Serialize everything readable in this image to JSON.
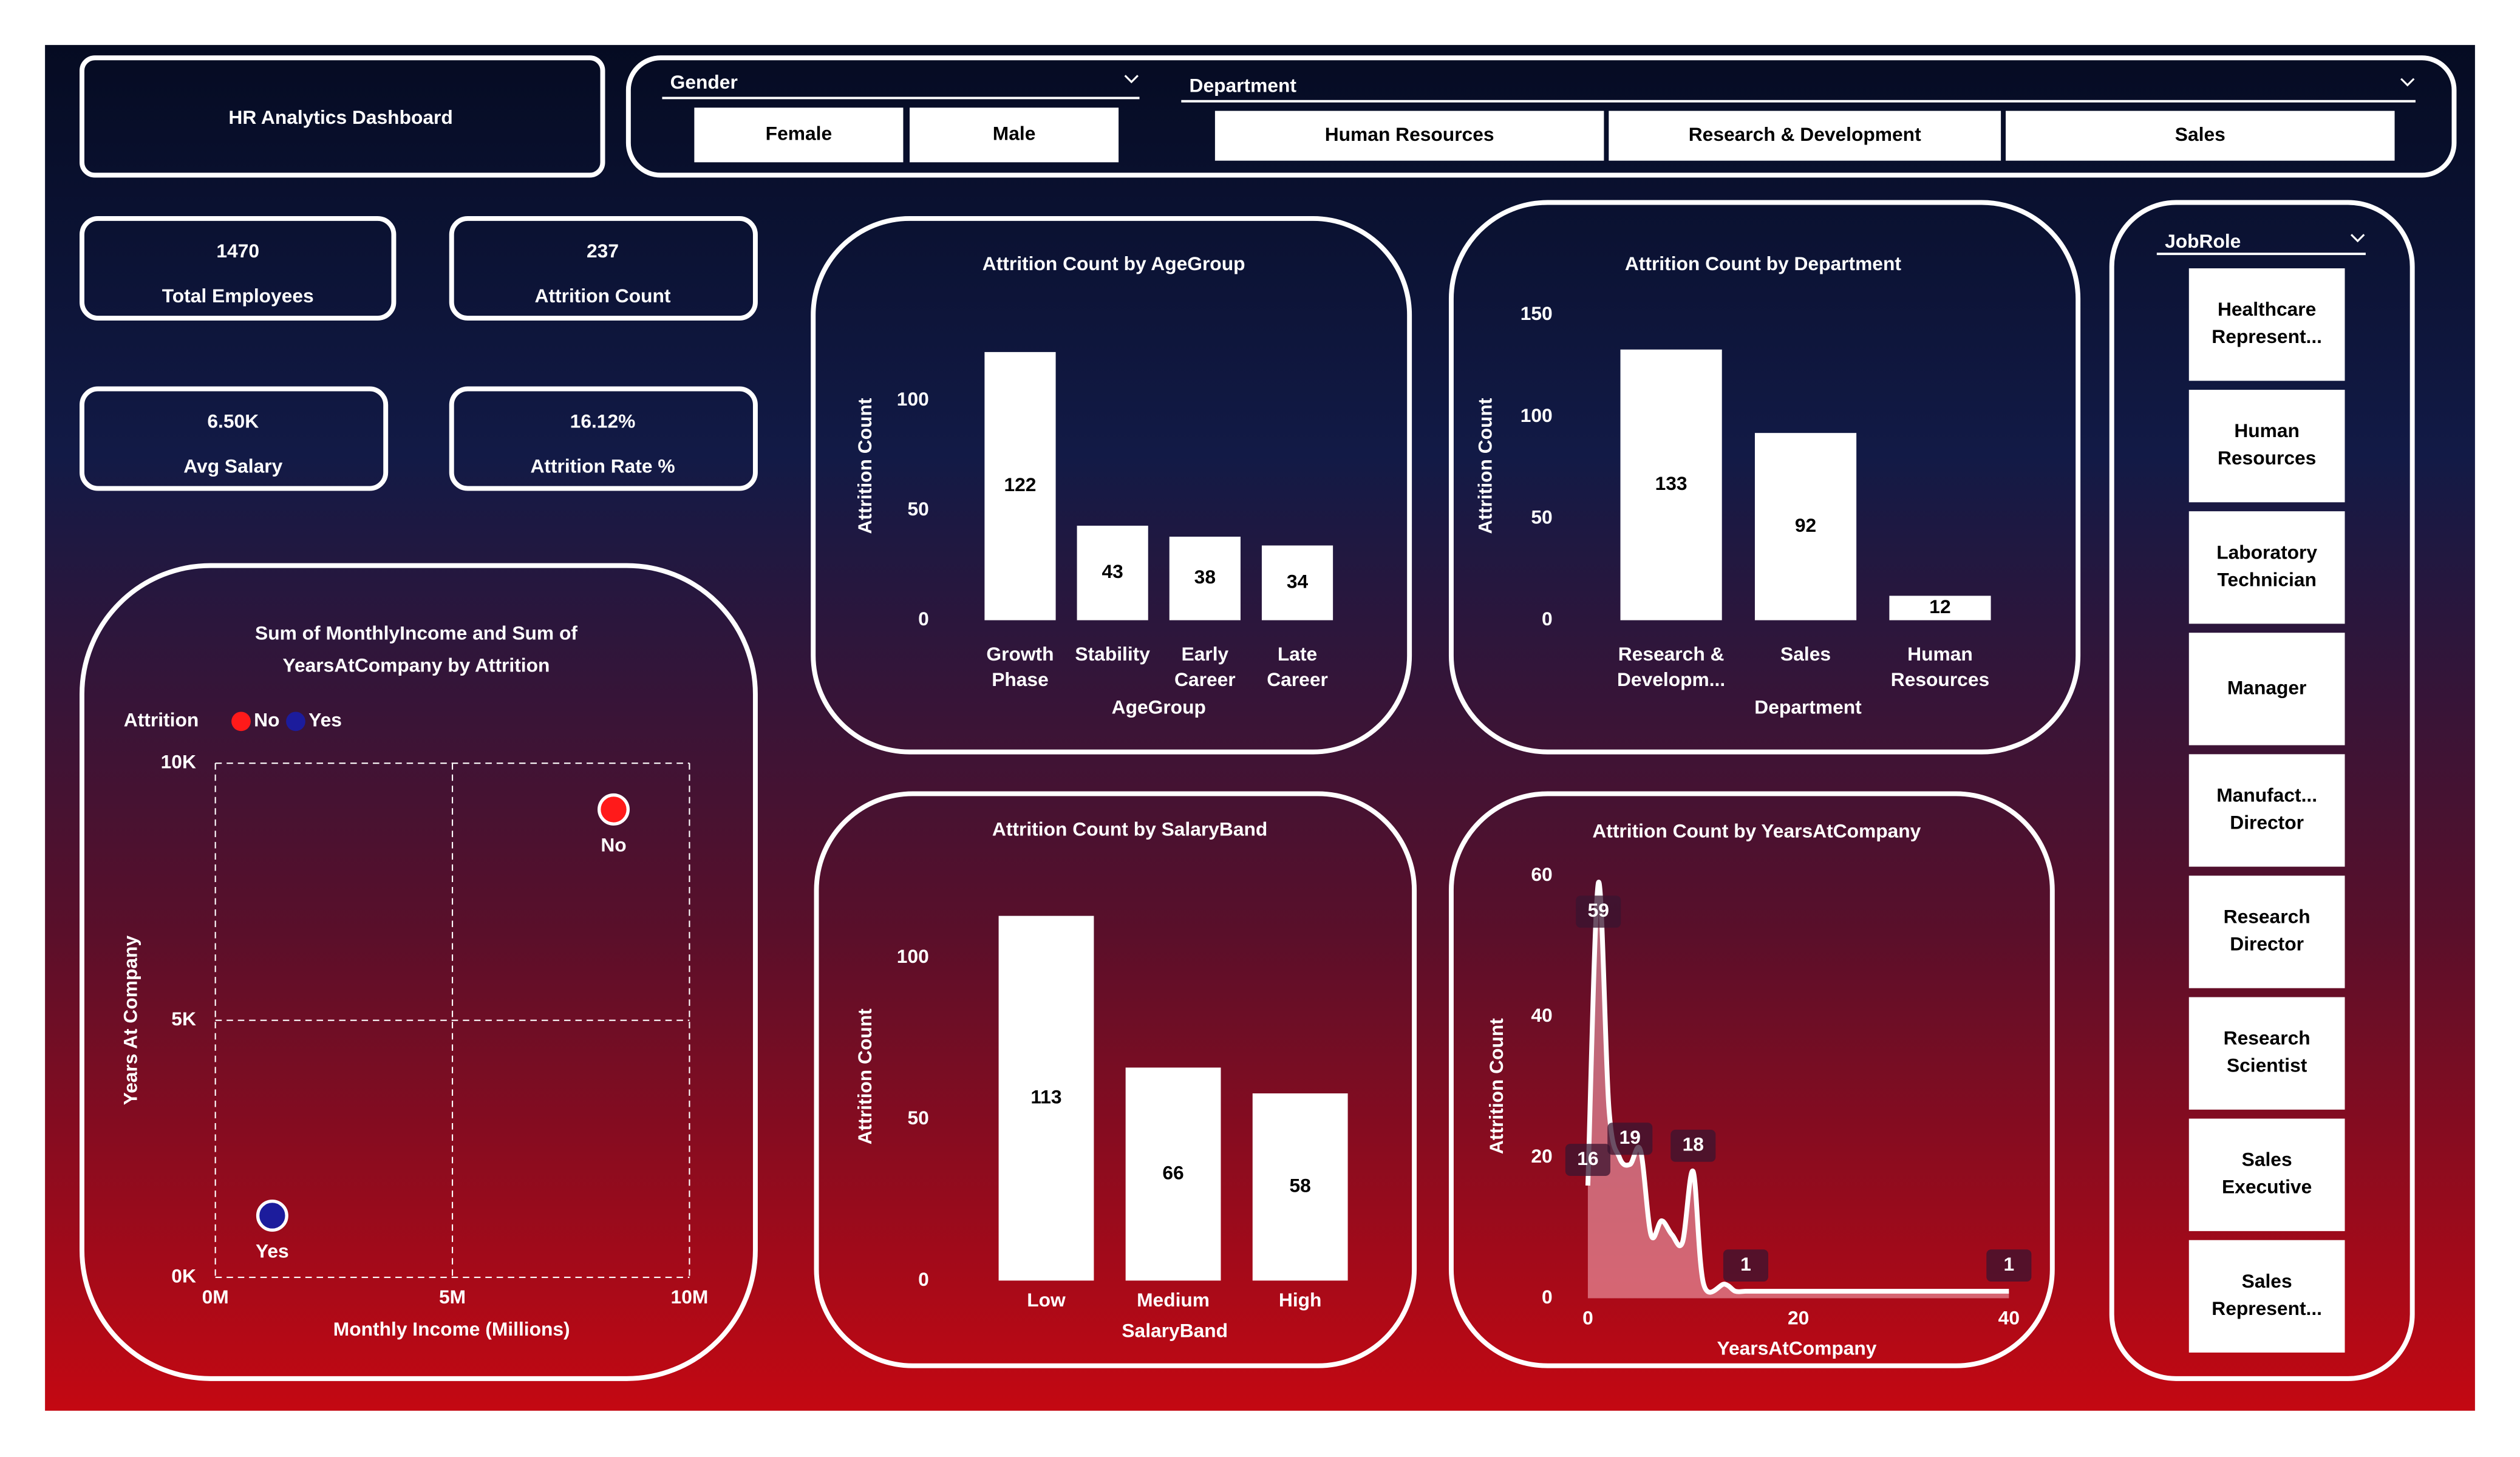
{
  "header": {
    "title": "HR Analytics Dashboard"
  },
  "slicers": {
    "gender": {
      "label": "Gender",
      "options": [
        "Female",
        "Male"
      ]
    },
    "department": {
      "label": "Department",
      "options": [
        "Human Resources",
        "Research & Development",
        "Sales"
      ]
    },
    "job_role": {
      "label": "JobRole",
      "options": [
        "Healthcare Represent...",
        "Human Resources",
        "Laboratory Technician",
        "Manager",
        "Manufact... Director",
        "Research Director",
        "Research Scientist",
        "Sales Executive",
        "Sales Represent..."
      ]
    }
  },
  "kpis": [
    {
      "value": "1470",
      "label": "Total Employees"
    },
    {
      "value": "237",
      "label": "Attrition Count"
    },
    {
      "value": "6.50K",
      "label": "Avg Salary"
    },
    {
      "value": "16.12%",
      "label": "Attrition Rate %"
    }
  ],
  "chart_data": [
    {
      "type": "scatter",
      "title": "Sum of MonthlyIncome and Sum of YearsAtCompany by Attrition",
      "legend_title": "Attrition",
      "xlabel": "Monthly Income (Millions)",
      "ylabel": "Years At Company",
      "series": [
        {
          "name": "No",
          "color": "#ff1a1a",
          "x": [
            8.4
          ],
          "values": [
            9100
          ]
        },
        {
          "name": "Yes",
          "color": "#1c1c9c",
          "x": [
            1.2
          ],
          "values": [
            1200
          ]
        }
      ],
      "xlim": [
        0,
        10
      ],
      "xticks": [
        {
          "value": 0,
          "label": "0M"
        },
        {
          "value": 5,
          "label": "5M"
        },
        {
          "value": 10,
          "label": "10M"
        }
      ],
      "ylim": [
        0,
        10000
      ],
      "yticks": [
        {
          "value": 0,
          "label": "0K"
        },
        {
          "value": 5000,
          "label": "5K"
        },
        {
          "value": 10000,
          "label": "10K"
        }
      ],
      "grid": true
    },
    {
      "type": "bar",
      "title": "Attrition Count by AgeGroup",
      "xlabel": "AgeGroup",
      "ylabel": "Attrition Count",
      "categories": [
        "Growth Phase",
        "Stability",
        "Early Career",
        "Late Career"
      ],
      "values": [
        122,
        43,
        38,
        34
      ],
      "color": "#ffffff",
      "ylim": [
        0,
        125
      ],
      "yticks": [
        0,
        50,
        100
      ]
    },
    {
      "type": "bar",
      "title": "Attrition Count by Department",
      "xlabel": "Department",
      "ylabel": "Attrition Count",
      "categories": [
        "Research & Developm...",
        "Sales",
        "Human Resources"
      ],
      "values": [
        133,
        92,
        12
      ],
      "color": "#ffffff",
      "ylim": [
        0,
        150
      ],
      "yticks": [
        0,
        50,
        100,
        150
      ]
    },
    {
      "type": "bar",
      "title": "Attrition Count by SalaryBand",
      "xlabel": "SalaryBand",
      "ylabel": "Attrition Count",
      "categories": [
        "Low",
        "Medium",
        "High"
      ],
      "values": [
        113,
        66,
        58
      ],
      "color": "#ffffff",
      "ylim": [
        0,
        115
      ],
      "yticks": [
        0,
        50,
        100
      ]
    },
    {
      "type": "line",
      "title": "Attrition Count by YearsAtCompany",
      "xlabel": "YearsAtCompany",
      "ylabel": "Attrition Count",
      "x": [
        0,
        1,
        2,
        3,
        4,
        5,
        6,
        7,
        8,
        9,
        10,
        11,
        13,
        14,
        15,
        16,
        17,
        18,
        19,
        20,
        21,
        22,
        23,
        24,
        31,
        32,
        33,
        40
      ],
      "values": [
        16,
        59,
        27,
        20,
        19,
        21,
        9,
        11,
        9,
        8,
        18,
        2,
        2,
        1,
        1,
        1,
        1,
        1,
        1,
        1,
        1,
        1,
        1,
        1,
        1,
        1,
        1,
        1
      ],
      "value_labels": [
        "16",
        "59",
        null,
        null,
        "19",
        null,
        null,
        null,
        null,
        null,
        "18",
        null,
        null,
        null,
        "1",
        null,
        null,
        null,
        null,
        null,
        null,
        null,
        null,
        null,
        null,
        null,
        null,
        "1"
      ],
      "color": "#ffffff",
      "area_color": "#f4a3b0",
      "xlim": [
        0,
        40
      ],
      "xticks": [
        0,
        20,
        40
      ],
      "ylim": [
        0,
        60
      ],
      "yticks": [
        0,
        20,
        40,
        60
      ]
    }
  ]
}
